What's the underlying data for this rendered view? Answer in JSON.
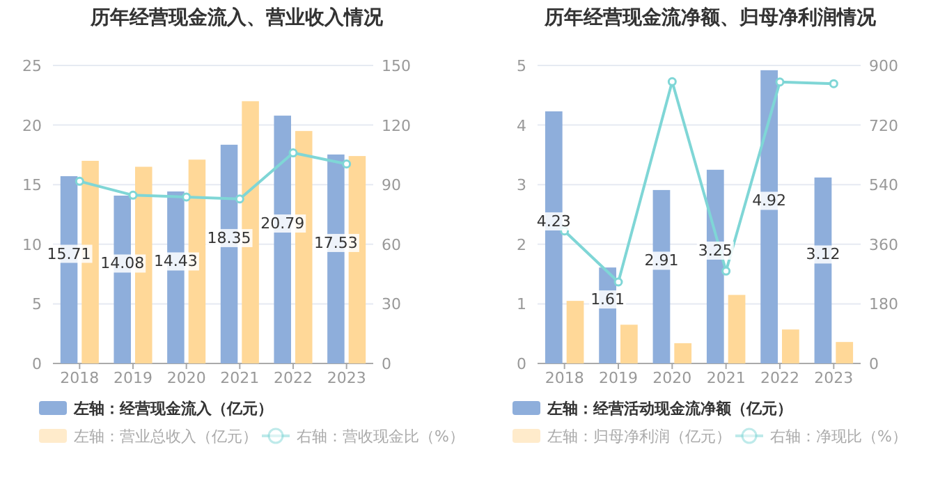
{
  "chart_data": [
    {
      "type": "bar",
      "title": "历年经营现金流入、营业收入情况",
      "categories": [
        "2018",
        "2019",
        "2020",
        "2021",
        "2022",
        "2023"
      ],
      "series": [
        {
          "name": "左轴：经营现金流入（亿元）",
          "color": "#8eaedb",
          "values": [
            15.71,
            14.08,
            14.43,
            18.35,
            20.79,
            17.53
          ],
          "value_labels": [
            "15.71",
            "14.08",
            "14.43",
            "18.35",
            "20.79",
            "17.53"
          ]
        },
        {
          "name": "左轴：营业总收入（亿元）",
          "color": "#ffd898",
          "values": [
            17.0,
            16.5,
            17.1,
            22.0,
            19.5,
            17.4
          ]
        },
        {
          "name": "右轴：营收现金比（%）",
          "type": "line",
          "axis": "y2",
          "color": "#7fd6d6",
          "values": [
            91.7,
            84.7,
            83.8,
            82.8,
            106,
            100.4
          ]
        }
      ],
      "ylim": [
        0,
        25
      ],
      "yticks": [
        0,
        5,
        10,
        15,
        20,
        25
      ],
      "y2lim": [
        0,
        150
      ],
      "y2ticks": [
        0,
        30,
        60,
        90,
        120,
        150
      ],
      "grid": "y",
      "legend": "bottom",
      "marker": "circle"
    },
    {
      "type": "bar",
      "title": "历年经营现金流净额、归母净利润情况",
      "categories": [
        "2018",
        "2019",
        "2020",
        "2021",
        "2022",
        "2023"
      ],
      "series": [
        {
          "name": "左轴：经营活动现金流净额（亿元）",
          "color": "#8eaedb",
          "values": [
            4.23,
            1.61,
            2.91,
            3.25,
            4.92,
            3.12
          ],
          "value_labels": [
            "4.23",
            "1.61",
            "2.91",
            "3.25",
            "4.92",
            "3.12"
          ]
        },
        {
          "name": "左轴：归母净利润（亿元）",
          "color": "#ffd898",
          "values": [
            1.05,
            0.65,
            0.34,
            1.15,
            0.57,
            0.36
          ]
        },
        {
          "name": "右轴：净现比（%）",
          "type": "line",
          "axis": "y2",
          "color": "#7fd6d6",
          "values": [
            400,
            246,
            851,
            279,
            850,
            845
          ]
        }
      ],
      "ylim": [
        0,
        5
      ],
      "yticks": [
        0,
        1,
        2,
        3,
        4,
        5
      ],
      "y2lim": [
        0,
        900
      ],
      "y2ticks": [
        0,
        180,
        360,
        540,
        720,
        900
      ],
      "grid": "y",
      "legend": "bottom",
      "marker": "circle"
    }
  ]
}
